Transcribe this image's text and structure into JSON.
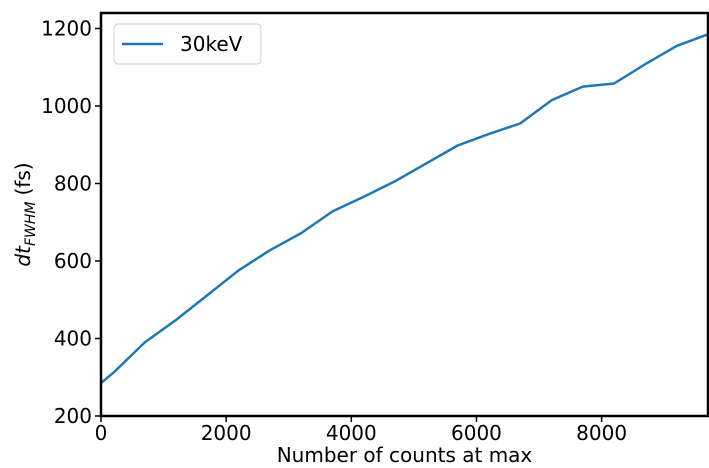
{
  "chart_data": {
    "type": "line",
    "xlabel": "Number of counts at max",
    "ylabel": {
      "base": "dt",
      "subscript": "FWHM",
      "unit": "(fs)"
    },
    "xlim": [
      0,
      9700
    ],
    "ylim": [
      200,
      1240
    ],
    "xticks": [
      0,
      2000,
      4000,
      6000,
      8000
    ],
    "yticks": [
      200,
      400,
      600,
      800,
      1000,
      1200
    ],
    "grid": false,
    "legend_position": "top-left",
    "series": [
      {
        "name": "30keV",
        "color": "#1f77b4",
        "x": [
          0,
          200,
          700,
          1200,
          1700,
          2200,
          2700,
          3200,
          3700,
          4200,
          4700,
          5200,
          5700,
          6200,
          6700,
          7200,
          7700,
          8200,
          8700,
          9200,
          9700
        ],
        "y": [
          285,
          312,
          390,
          448,
          512,
          576,
          628,
          672,
          728,
          766,
          806,
          852,
          898,
          928,
          955,
          1015,
          1050,
          1058,
          1108,
          1155,
          1185
        ]
      }
    ]
  }
}
